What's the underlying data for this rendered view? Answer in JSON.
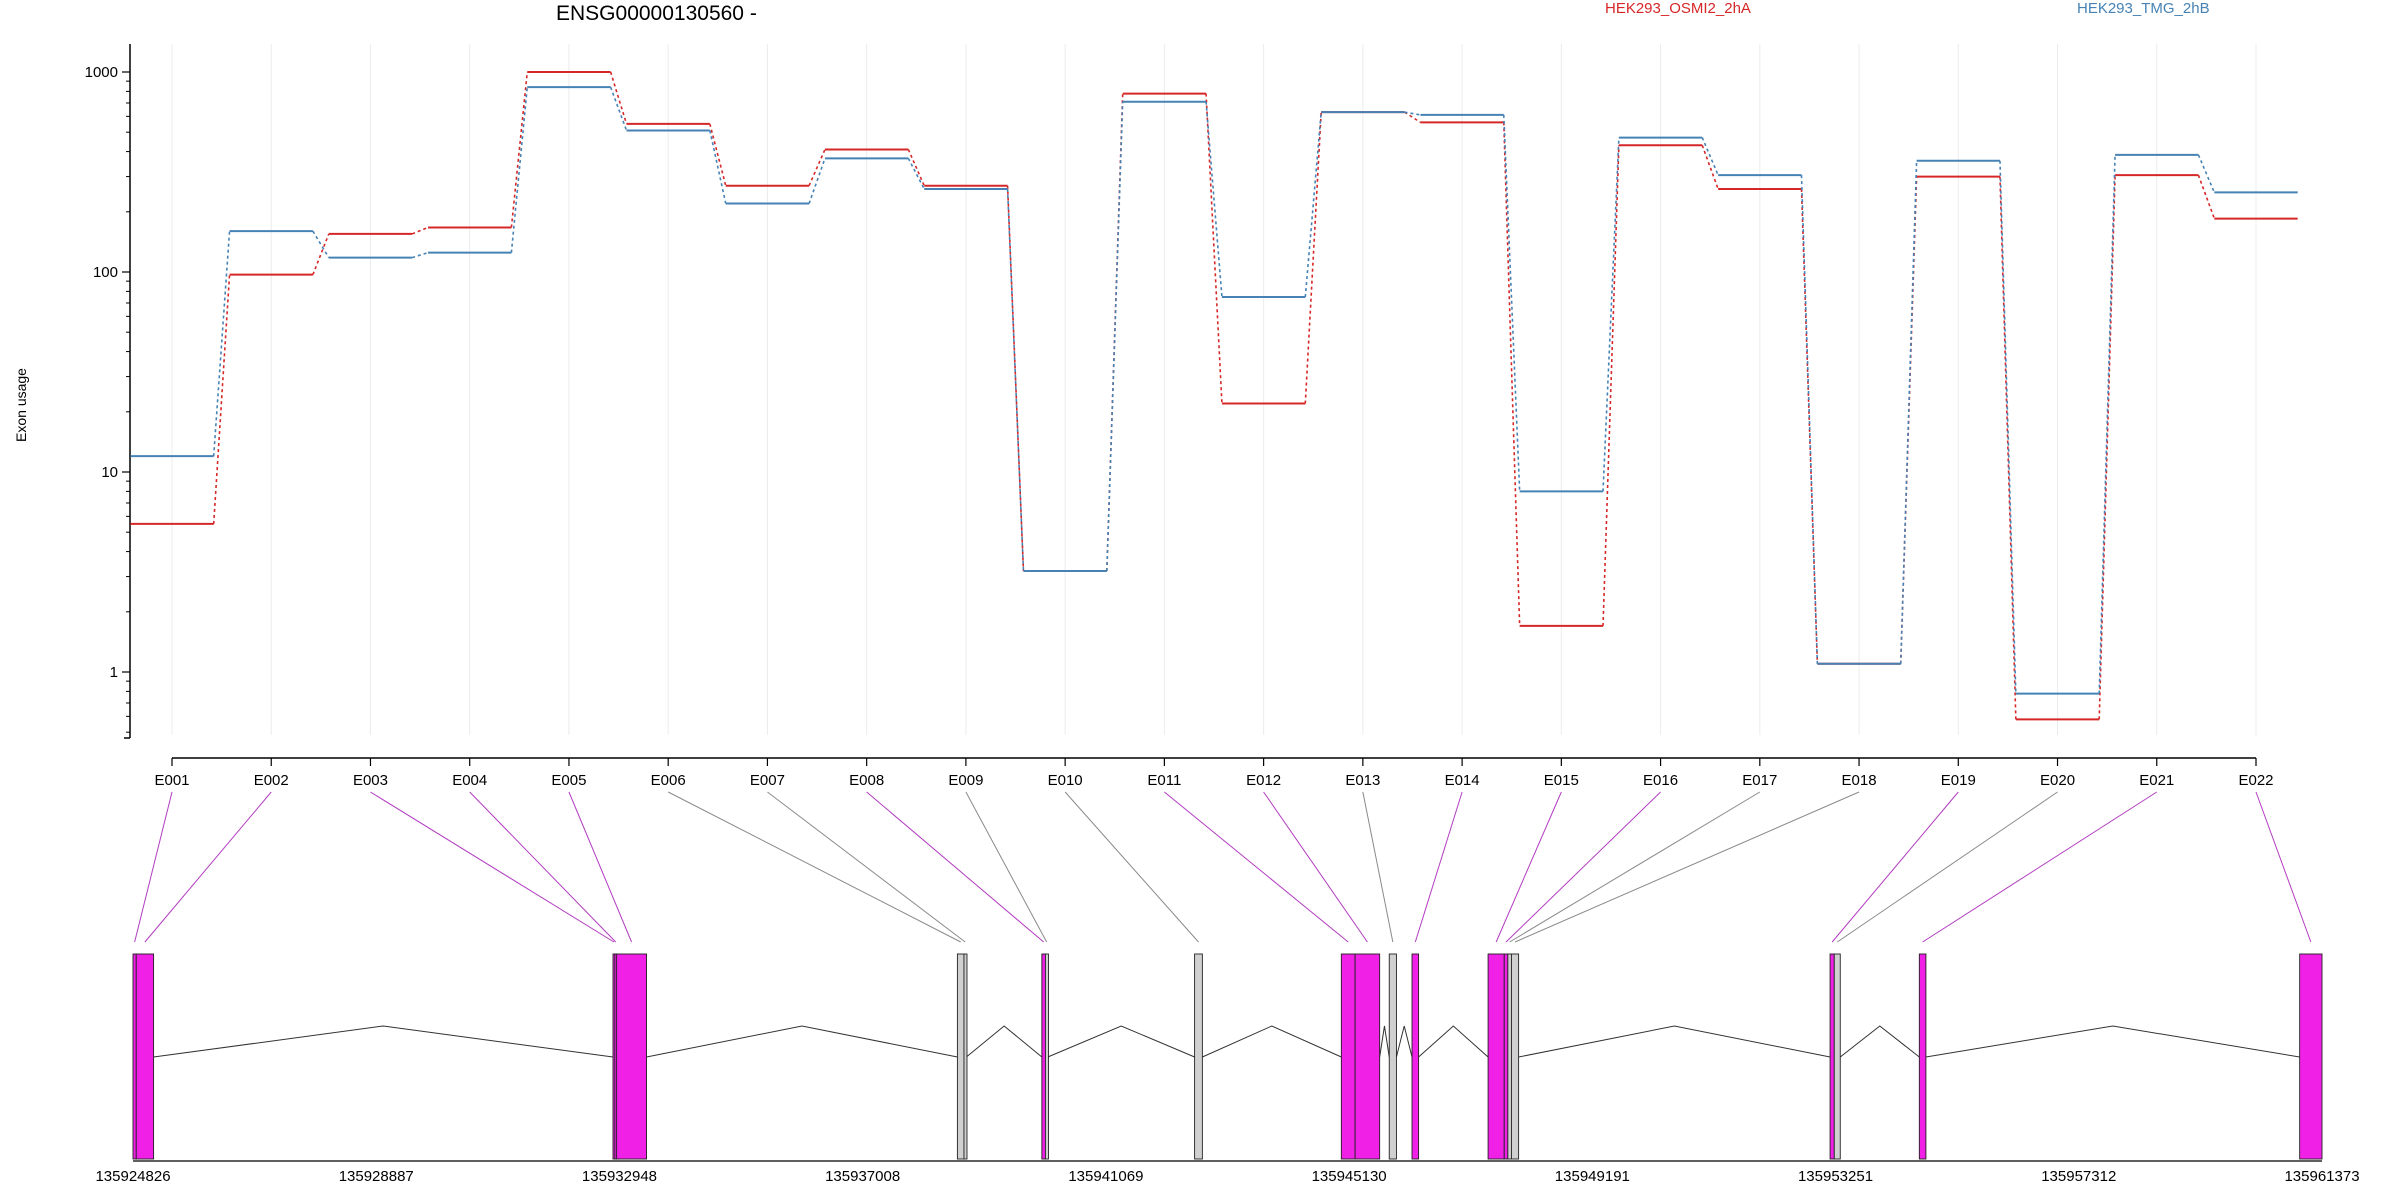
{
  "chart_data": {
    "type": "line",
    "title": "ENSG00000130560 -",
    "ylabel": "Exon usage",
    "xlabel": "",
    "yscale": "log",
    "ylim": [
      0.5,
      1300
    ],
    "yticks": [
      "1000",
      "100",
      "10",
      "1"
    ],
    "grid": "vertical",
    "legend_placement": "top",
    "categories": [
      "E001",
      "E002",
      "E003",
      "E004",
      "E005",
      "E006",
      "E007",
      "E008",
      "E009",
      "E010",
      "E011",
      "E012",
      "E013",
      "E014",
      "E015",
      "E016",
      "E017",
      "E018",
      "E019",
      "E020",
      "E021",
      "E022"
    ],
    "series": [
      {
        "name": "HEK293_OSMI2_2hA",
        "color": "#d62728",
        "values": [
          5.5,
          97,
          155,
          167,
          1000,
          550,
          270,
          410,
          270,
          3.2,
          780,
          22,
          630,
          560,
          1.7,
          430,
          260,
          1.1,
          300,
          0.58,
          305,
          185
        ]
      },
      {
        "name": "HEK293_TMG_2hB",
        "color": "#4682b4",
        "values": [
          12,
          160,
          118,
          125,
          840,
          510,
          220,
          370,
          260,
          3.2,
          710,
          75,
          630,
          610,
          8,
          470,
          305,
          1.1,
          360,
          0.78,
          385,
          250
        ]
      }
    ],
    "gene_model": {
      "coord_ticks": [
        "135924826",
        "135928887",
        "135932948",
        "135937008",
        "135941069",
        "135945130",
        "135949191",
        "135953251",
        "135957312",
        "135961373"
      ],
      "coord_range": [
        135924826,
        135961373
      ],
      "exon_colors": {
        "significant": "#f020e6",
        "other": "#d0d0d0"
      },
      "exons": [
        {
          "label": "E001",
          "start": 135924826,
          "end": 135924880,
          "significant": true
        },
        {
          "label": "E002",
          "start": 135924880,
          "end": 135925170,
          "significant": true
        },
        {
          "label": "E003",
          "start": 135932840,
          "end": 135932870,
          "significant": true
        },
        {
          "label": "E004",
          "start": 135932870,
          "end": 135932900,
          "significant": true
        },
        {
          "label": "E005",
          "start": 135932900,
          "end": 135933400,
          "significant": true
        },
        {
          "label": "E006",
          "start": 135938590,
          "end": 135938700,
          "significant": false
        },
        {
          "label": "E007",
          "start": 135938700,
          "end": 135938740,
          "significant": false
        },
        {
          "label": "E008",
          "start": 135940000,
          "end": 135940060,
          "significant": true
        },
        {
          "label": "E009",
          "start": 135940060,
          "end": 135940100,
          "significant": false
        },
        {
          "label": "E010",
          "start": 135942550,
          "end": 135942680,
          "significant": false
        },
        {
          "label": "E011",
          "start": 135945000,
          "end": 135945230,
          "significant": true
        },
        {
          "label": "E012",
          "start": 135945230,
          "end": 135945640,
          "significant": true
        },
        {
          "label": "E013",
          "start": 135945800,
          "end": 135945920,
          "significant": false
        },
        {
          "label": "E014",
          "start": 135946180,
          "end": 135946290,
          "significant": true
        },
        {
          "label": "E015",
          "start": 135947450,
          "end": 135947720,
          "significant": true
        },
        {
          "label": "E016",
          "start": 135947720,
          "end": 135947780,
          "significant": true
        },
        {
          "label": "E017",
          "start": 135947780,
          "end": 135947840,
          "significant": false
        },
        {
          "label": "E018",
          "start": 135947840,
          "end": 135947960,
          "significant": false
        },
        {
          "label": "E019",
          "start": 135953160,
          "end": 135953230,
          "significant": true
        },
        {
          "label": "E020",
          "start": 135953230,
          "end": 135953330,
          "significant": false
        },
        {
          "label": "E021",
          "start": 135954650,
          "end": 135954760,
          "significant": true
        },
        {
          "label": "E022",
          "start": 135961000,
          "end": 135961373,
          "significant": true
        }
      ]
    }
  }
}
